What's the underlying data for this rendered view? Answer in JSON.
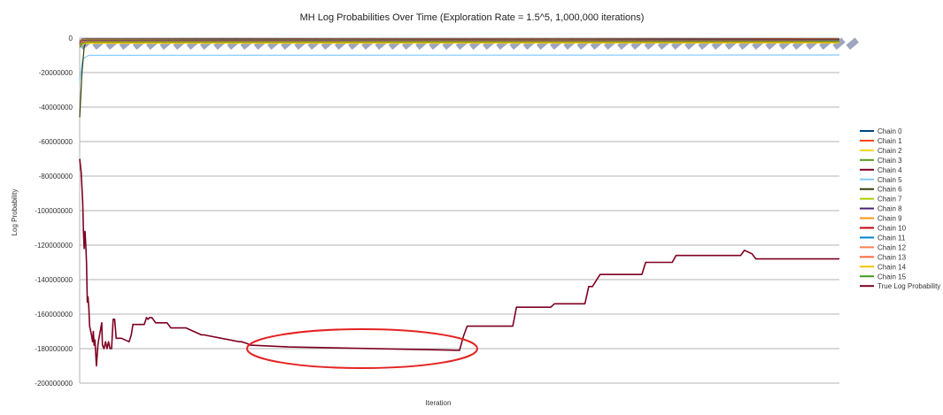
{
  "chart_data": {
    "type": "line",
    "title": "MH Log Probabilities Over Time (Exploration Rate = 1.5^5, 1,000,000 iterations)",
    "xlabel": "Iteration",
    "ylabel": "Log Probability",
    "ylim": [
      -200000000,
      0
    ],
    "yticks": [
      0,
      -20000000,
      -40000000,
      -60000000,
      -80000000,
      -100000000,
      -120000000,
      -140000000,
      -160000000,
      -180000000,
      -200000000
    ],
    "ytick_labels": [
      "0",
      "-20000000",
      "-40000000",
      "-60000000",
      "-80000000",
      "-100000000",
      "-120000000",
      "-140000000",
      "-160000000",
      "-180000000",
      "-200000000"
    ],
    "xlim": [
      1,
      1000000
    ],
    "grid": "horizontal",
    "legend_position": "right",
    "annotation": "red ellipse highlighting the flat low region of True Log Probability around iterations 220000-500000",
    "series": [
      {
        "name": "Chain 0",
        "color": "#004586",
        "x": [
          1,
          3000,
          10000,
          1000000
        ],
        "values": [
          -2000000,
          -600000,
          -400000,
          -300000
        ]
      },
      {
        "name": "Chain 1",
        "color": "#ff420e",
        "x": [
          1,
          3000,
          10000,
          1000000
        ],
        "values": [
          -2500000,
          -900000,
          -600000,
          -500000
        ]
      },
      {
        "name": "Chain 2",
        "color": "#ffd320",
        "x": [
          1,
          3000,
          10000,
          1000000
        ],
        "values": [
          -3000000,
          -1200000,
          -800000,
          -700000
        ]
      },
      {
        "name": "Chain 3",
        "color": "#579d1c",
        "x": [
          1,
          3000,
          10000,
          1000000
        ],
        "values": [
          -3500000,
          -1400000,
          -900000,
          -800000
        ]
      },
      {
        "name": "Chain 4",
        "color": "#7e0021",
        "x": [
          1,
          3000,
          10000,
          1000000
        ],
        "values": [
          -4000000,
          -1600000,
          -1000000,
          -900000
        ]
      },
      {
        "name": "Chain 5",
        "color": "#83caff",
        "x": [
          1,
          4000,
          12000,
          1000000
        ],
        "values": [
          -25000000,
          -12000000,
          -10000000,
          -9800000
        ]
      },
      {
        "name": "Chain 6",
        "color": "#314004",
        "x": [
          1,
          3000,
          6000,
          10000,
          1000000
        ],
        "values": [
          -46000000,
          -20000000,
          -5000000,
          -1200000,
          -1000000
        ]
      },
      {
        "name": "Chain 7",
        "color": "#aecf00",
        "x": [
          1,
          3000,
          10000,
          1000000
        ],
        "values": [
          -3000000,
          -1500000,
          -1100000,
          -1000000
        ]
      },
      {
        "name": "Chain 8",
        "color": "#4b1f6f",
        "x": [
          1,
          3000,
          10000,
          1000000
        ],
        "values": [
          -3200000,
          -1600000,
          -1200000,
          -1100000
        ]
      },
      {
        "name": "Chain 9",
        "color": "#ff950e",
        "x": [
          1,
          3000,
          10000,
          1000000
        ],
        "values": [
          -5000000,
          -3000000,
          -2500000,
          -2300000
        ]
      },
      {
        "name": "Chain 10",
        "color": "#c5000b",
        "x": [
          1,
          3000,
          10000,
          1000000
        ],
        "values": [
          -3000000,
          -1800000,
          -1400000,
          -1300000
        ]
      },
      {
        "name": "Chain 11",
        "color": "#0084d1",
        "x": [
          1,
          3000,
          10000,
          1000000
        ],
        "values": [
          -3500000,
          -2000000,
          -1600000,
          -1500000
        ]
      },
      {
        "name": "Chain 12",
        "color": "#ff7f50",
        "x": [
          1,
          3000,
          10000,
          1000000
        ],
        "values": [
          -4000000,
          -2200000,
          -1800000,
          -1700000
        ]
      },
      {
        "name": "Chain 13",
        "color": "#ff6a3d",
        "x": [
          1,
          3000,
          10000,
          1000000
        ],
        "values": [
          -4500000,
          -2500000,
          -2000000,
          -1900000
        ]
      },
      {
        "name": "Chain 14",
        "color": "#f5c400",
        "x": [
          1,
          3000,
          10000,
          1000000
        ],
        "values": [
          -5000000,
          -3500000,
          -3000000,
          -2800000
        ]
      },
      {
        "name": "Chain 15",
        "color": "#3d9b1f",
        "x": [
          1,
          3000,
          10000,
          1000000
        ],
        "values": [
          -5500000,
          -3000000,
          -2200000,
          -2000000
        ]
      },
      {
        "name": "True Log Probability",
        "color": "#7e0021",
        "x": [
          1,
          2000,
          4000,
          5000,
          6000,
          7000,
          8000,
          9000,
          10000,
          11000,
          12000,
          13000,
          15000,
          17000,
          18000,
          19000,
          20000,
          22000,
          24000,
          25000,
          27000,
          29000,
          30000,
          32000,
          34000,
          36000,
          38000,
          40000,
          42000,
          44000,
          46000,
          48000,
          55000,
          65000,
          68000,
          70000,
          85000,
          88000,
          90000,
          92000,
          95000,
          100000,
          115000,
          120000,
          140000,
          160000,
          163000,
          210000,
          213000,
          220000,
          225000,
          275000,
          500000,
          505000,
          510000,
          570000,
          575000,
          620000,
          625000,
          665000,
          670000,
          675000,
          685000,
          740000,
          745000,
          780000,
          785000,
          870000,
          875000,
          885000,
          890000,
          1000000
        ],
        "values": [
          -70000000,
          -78000000,
          -95000000,
          -113000000,
          -122000000,
          -112000000,
          -120000000,
          -130000000,
          -153000000,
          -150000000,
          -156000000,
          -167000000,
          -171000000,
          -176000000,
          -170000000,
          -178000000,
          -175000000,
          -190000000,
          -178000000,
          -175000000,
          -170000000,
          -165000000,
          -178000000,
          -180000000,
          -176000000,
          -180000000,
          -176000000,
          -180000000,
          -180000000,
          -163000000,
          -163000000,
          -174000000,
          -174000000,
          -176000000,
          -172000000,
          -166000000,
          -166000000,
          -162000000,
          -163000000,
          -162000000,
          -162000000,
          -165000000,
          -165000000,
          -168000000,
          -168000000,
          -172000000,
          -172000000,
          -176000000,
          -176000000,
          -177000000,
          -178000000,
          -179000000,
          -181000000,
          -173000000,
          -167000000,
          -167000000,
          -156000000,
          -156000000,
          -154000000,
          -154000000,
          -144000000,
          -144000000,
          -137000000,
          -137000000,
          -130000000,
          -130000000,
          -126000000,
          -126000000,
          -123000000,
          -125000000,
          -128000000,
          -128000000
        ]
      }
    ]
  }
}
